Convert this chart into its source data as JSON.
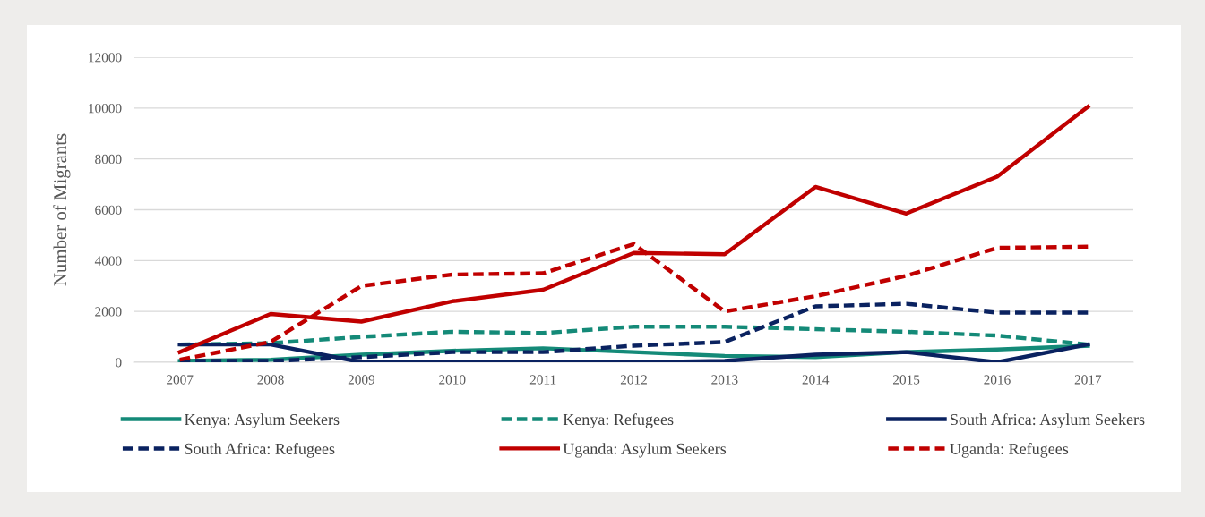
{
  "chart_data": {
    "type": "line",
    "ylabel": "Number of Migrants",
    "categories": [
      "2007",
      "2008",
      "2009",
      "2010",
      "2011",
      "2012",
      "2013",
      "2014",
      "2015",
      "2016",
      "2017"
    ],
    "series": [
      {
        "name": "Kenya: Asylum Seekers",
        "color": "#148a78",
        "line_style": "solid",
        "values": [
          50,
          100,
          300,
          450,
          550,
          400,
          250,
          200,
          400,
          500,
          650
        ]
      },
      {
        "name": "Kenya: Refugees",
        "color": "#148a78",
        "line_style": "dashed",
        "values": [
          700,
          750,
          1000,
          1200,
          1150,
          1400,
          1400,
          1300,
          1200,
          1050,
          700
        ]
      },
      {
        "name": "South Africa: Asylum Seekers",
        "color": "#0a2260",
        "line_style": "solid",
        "values": [
          700,
          700,
          0,
          0,
          0,
          0,
          50,
          300,
          400,
          0,
          700
        ]
      },
      {
        "name": "South Africa: Refugees",
        "color": "#0a2260",
        "line_style": "dashed",
        "values": [
          50,
          50,
          200,
          400,
          400,
          650,
          800,
          2200,
          2300,
          1950,
          1950
        ]
      },
      {
        "name": "Uganda: Asylum Seekers",
        "color": "#c00000",
        "line_style": "solid",
        "values": [
          400,
          1900,
          1600,
          2400,
          2850,
          4300,
          4250,
          6900,
          5850,
          7300,
          10050
        ]
      },
      {
        "name": "Uganda: Refugees",
        "color": "#c00000",
        "line_style": "dashed",
        "values": [
          100,
          800,
          3000,
          3450,
          3500,
          4650,
          2000,
          2600,
          3400,
          4500,
          4550
        ]
      }
    ],
    "ylim": [
      0,
      12000
    ],
    "yticks": [
      0,
      2000,
      4000,
      6000,
      8000,
      10000,
      12000
    ],
    "grid": "y",
    "legend": "bottom",
    "marker": "none"
  }
}
